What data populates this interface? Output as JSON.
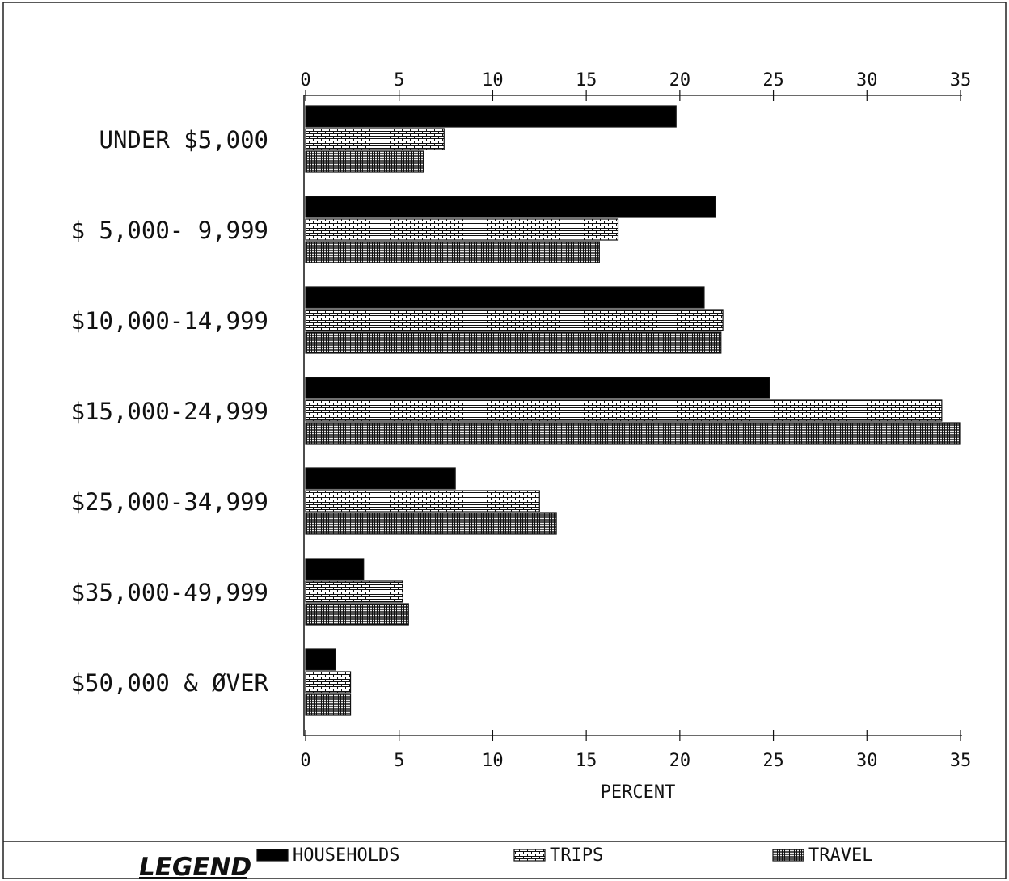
{
  "chart_data": {
    "type": "bar",
    "orientation": "horizontal",
    "categories": [
      "UNDER $5,000",
      "$ 5,000- 9,999",
      "$10,000-14,999",
      "$15,000-24,999",
      "$25,000-34,999",
      "$35,000-49,999",
      "$50,000 & ØVER"
    ],
    "series": [
      {
        "name": "HOUSEHOLDS",
        "values": [
          19.8,
          21.9,
          21.3,
          24.8,
          8.0,
          3.1,
          1.6
        ],
        "fill": "solid",
        "color": "#000000"
      },
      {
        "name": "TRIPS",
        "values": [
          7.4,
          16.7,
          22.3,
          34.0,
          12.5,
          5.2,
          2.4
        ],
        "fill": "brick",
        "color": "#000000"
      },
      {
        "name": "TRAVEL",
        "values": [
          6.3,
          15.7,
          22.2,
          35.0,
          13.4,
          5.5,
          2.4
        ],
        "fill": "hatch",
        "color": "#000000"
      }
    ],
    "xlim": [
      0,
      35
    ],
    "ticks": [
      "0",
      "5",
      "10",
      "15",
      "20",
      "25",
      "30",
      "35"
    ],
    "xlabel": "PERCENT",
    "grid": false,
    "legend": {
      "title": "LEGEND",
      "placement": "bottom"
    }
  }
}
